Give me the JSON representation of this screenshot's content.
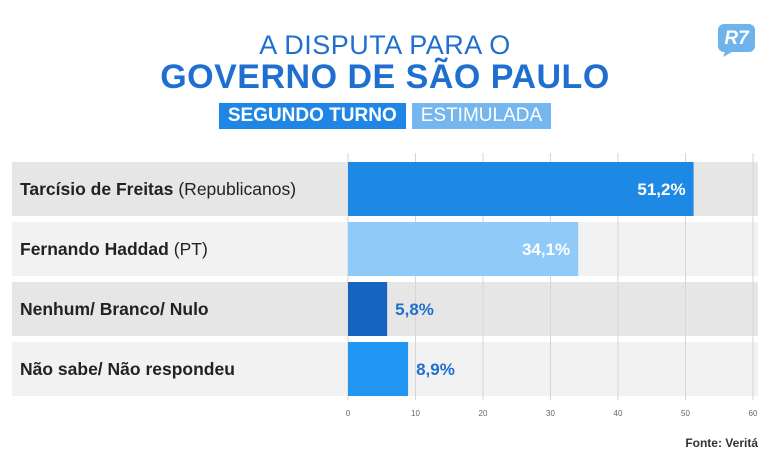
{
  "header": {
    "title_line1": "A DISPUTA PARA O",
    "title_line2": "GOVERNO DE SÃO PAULO",
    "tag_primary": "SEGUNDO TURNO",
    "tag_secondary": "ESTIMULADA",
    "logo_text": "R7"
  },
  "source": "Fonte: Veritá",
  "colors": {
    "title": "#1f6fd1",
    "row_bg_dark": "#e6e6e6",
    "row_bg_light": "#f2f2f2",
    "bar1": "#1e88e5",
    "bar2": "#90caf9",
    "bar3": "#1565c0",
    "bar4": "#2196f3"
  },
  "chart_data": {
    "type": "bar",
    "orientation": "horizontal",
    "categories": [
      {
        "name": "Tarcísio de Freitas",
        "party": "(Republicanos)"
      },
      {
        "name": "Fernando Haddad",
        "party": "(PT)"
      },
      {
        "name": "Nenhum/ Branco/ Nulo",
        "party": ""
      },
      {
        "name": "Não sabe/ Não respondeu",
        "party": ""
      }
    ],
    "values": [
      51.2,
      34.1,
      5.8,
      8.9
    ],
    "value_labels": [
      "51,2%",
      "34,1%",
      "5,8%",
      "8,9%"
    ],
    "xlim": [
      0,
      60
    ],
    "xticks": [
      "0",
      "10",
      "20",
      "30",
      "40",
      "50",
      "60"
    ],
    "grid": true,
    "label_position": [
      "inside",
      "inside",
      "outside",
      "outside"
    ]
  }
}
